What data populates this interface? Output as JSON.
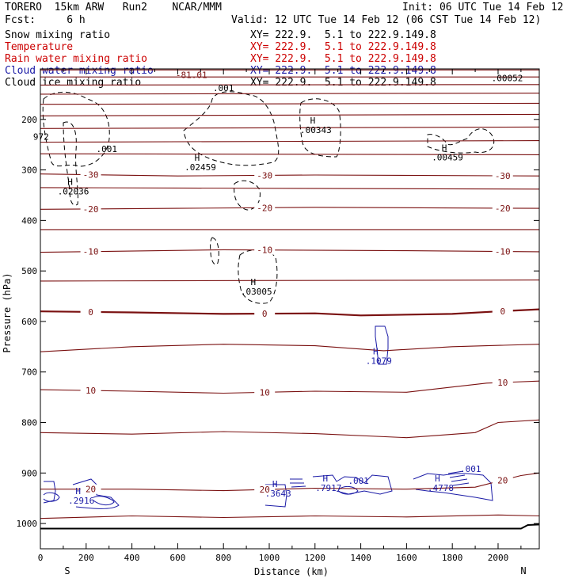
{
  "header": {
    "left_line1": "TORERO  15km ARW   Run2    NCAR/MMM",
    "left_line2": "Fcst:     6 h",
    "init": "Init: 06 UTC Tue 14 Feb 12",
    "valid": "Valid: 12 UTC Tue 14 Feb 12 (06 CST Tue 14 Feb 12)"
  },
  "legend": [
    {
      "name": "Snow mixing ratio",
      "xy": "XY= 222.9.  5.1 to 222.9.149.8",
      "color": "#000000"
    },
    {
      "name": "Temperature",
      "xy": "XY= 222.9.  5.1 to 222.9.149.8",
      "color": "#cc0000"
    },
    {
      "name": "Rain water mixing ratio",
      "xy": "XY= 222.9.  5.1 to 222.9.149.8",
      "color": "#cc0000"
    },
    {
      "name": "Cloud water mixing ratio",
      "xy": "XY= 222.9.  5.1 to 222.9.149.8",
      "color": "#1a1aa6"
    },
    {
      "name": "Cloud ice mixing ratio",
      "xy": "XY= 222.9.  5.1 to 222.9.149.8",
      "color": "#000000"
    }
  ],
  "chart_data": {
    "type": "line",
    "xlabel": "Distance (km)",
    "ylabel": "Pressure (hPa)",
    "xlim": [
      0,
      2180
    ],
    "ylim": [
      1050,
      100
    ],
    "x_ticks": [
      0,
      200,
      400,
      600,
      800,
      1000,
      1200,
      1400,
      1600,
      1800,
      2000
    ],
    "y_ticks": [
      200,
      300,
      400,
      500,
      600,
      700,
      800,
      900,
      1000
    ],
    "x_end_labels": {
      "left": "S",
      "right": "N"
    },
    "colors": {
      "temperature": "#7a1010",
      "cloud_water": "#1a1aa6",
      "snow": "#000000",
      "ground": "#000000"
    },
    "temperature_lines": [
      {
        "label": "",
        "points": [
          [
            0,
            102
          ],
          [
            2180,
            102
          ]
        ]
      },
      {
        "label": "",
        "points": [
          [
            0,
            116
          ],
          [
            2180,
            116
          ]
        ]
      },
      {
        "label": "",
        "points": [
          [
            0,
            132
          ],
          [
            2180,
            131
          ]
        ]
      },
      {
        "label": "",
        "points": [
          [
            0,
            150
          ],
          [
            2180,
            148
          ]
        ]
      },
      {
        "label": "",
        "points": [
          [
            0,
            170
          ],
          [
            2180,
            168
          ]
        ]
      },
      {
        "label": "",
        "points": [
          [
            0,
            193
          ],
          [
            2180,
            190
          ]
        ]
      },
      {
        "label": "",
        "points": [
          [
            0,
            218
          ],
          [
            2180,
            215
          ]
        ]
      },
      {
        "label": "",
        "points": [
          [
            0,
            245
          ],
          [
            2180,
            242
          ]
        ]
      },
      {
        "label": "",
        "points": [
          [
            0,
            268
          ],
          [
            2180,
            270
          ]
        ]
      },
      {
        "label": "-30",
        "points": [
          [
            0,
            308
          ],
          [
            600,
            312
          ],
          [
            1200,
            310
          ],
          [
            2180,
            312
          ]
        ]
      },
      {
        "label": "",
        "points": [
          [
            0,
            335
          ],
          [
            2180,
            338
          ]
        ]
      },
      {
        "label": "-20",
        "points": [
          [
            0,
            378
          ],
          [
            600,
            376
          ],
          [
            1200,
            374
          ],
          [
            2180,
            376
          ]
        ]
      },
      {
        "label": "",
        "points": [
          [
            0,
            418
          ],
          [
            2180,
            418
          ]
        ]
      },
      {
        "label": "-10",
        "points": [
          [
            0,
            463
          ],
          [
            800,
            458
          ],
          [
            1600,
            460
          ],
          [
            2180,
            462
          ]
        ]
      },
      {
        "label": "",
        "points": [
          [
            0,
            520
          ],
          [
            2180,
            518
          ]
        ]
      },
      {
        "label": "0",
        "points": [
          [
            0,
            580
          ],
          [
            400,
            582
          ],
          [
            800,
            585
          ],
          [
            1200,
            584
          ],
          [
            1400,
            588
          ],
          [
            1800,
            585
          ],
          [
            2000,
            580
          ],
          [
            2180,
            576
          ]
        ]
      },
      {
        "label": "",
        "points": [
          [
            0,
            660
          ],
          [
            400,
            650
          ],
          [
            800,
            645
          ],
          [
            1200,
            648
          ],
          [
            1500,
            658
          ],
          [
            1800,
            650
          ],
          [
            2180,
            645
          ]
        ]
      },
      {
        "label": "10",
        "points": [
          [
            0,
            735
          ],
          [
            400,
            738
          ],
          [
            800,
            742
          ],
          [
            1200,
            738
          ],
          [
            1600,
            740
          ],
          [
            1950,
            722
          ],
          [
            2180,
            718
          ]
        ]
      },
      {
        "label": "",
        "points": [
          [
            0,
            820
          ],
          [
            400,
            823
          ],
          [
            800,
            818
          ],
          [
            1200,
            822
          ],
          [
            1600,
            830
          ],
          [
            1900,
            820
          ],
          [
            2000,
            800
          ],
          [
            2180,
            795
          ]
        ]
      },
      {
        "label": "20",
        "points": [
          [
            0,
            932
          ],
          [
            400,
            932
          ],
          [
            800,
            935
          ],
          [
            1200,
            930
          ],
          [
            1600,
            932
          ],
          [
            1900,
            928
          ],
          [
            2100,
            905
          ],
          [
            2180,
            900
          ]
        ]
      },
      {
        "label": "",
        "points": [
          [
            0,
            990
          ],
          [
            400,
            985
          ],
          [
            800,
            988
          ],
          [
            1200,
            985
          ],
          [
            1600,
            987
          ],
          [
            2000,
            983
          ],
          [
            2180,
            985
          ]
        ]
      }
    ],
    "ground": [
      [
        0,
        1010
      ],
      [
        2100,
        1010
      ],
      [
        2130,
        1003
      ],
      [
        2180,
        1002
      ]
    ],
    "maxima": [
      {
        "x": 130,
        "p": 330,
        "label": ".02036",
        "color": "#000000"
      },
      {
        "x": 685,
        "p": 282,
        "label": ".02459",
        "color": "#000000"
      },
      {
        "x": 1190,
        "p": 208,
        "label": ".00343",
        "color": "#000000"
      },
      {
        "x": 1765,
        "p": 262,
        "label": ".00459",
        "color": "#000000"
      },
      {
        "x": 930,
        "p": 528,
        "label": ".03005",
        "color": "#000000"
      },
      {
        "x": 1465,
        "p": 665,
        "label": ".1079",
        "color": "#1a1aa6"
      },
      {
        "x": 165,
        "p": 942,
        "label": ".2916",
        "color": "#1a1aa6"
      },
      {
        "x": 1025,
        "p": 928,
        "label": ".3643",
        "color": "#1a1aa6"
      },
      {
        "x": 1245,
        "p": 917,
        "label": ".7917",
        "color": "#1a1aa6"
      },
      {
        "x": 1735,
        "p": 917,
        "label": ".4778",
        "color": "#1a1aa6"
      }
    ],
    "contour_labels": [
      {
        "x": 800,
        "p": 138,
        "text": ".001",
        "color": "#000000"
      },
      {
        "x": 290,
        "p": 258,
        "text": ".001",
        "color": "#000000"
      },
      {
        "x": 1390,
        "p": 915,
        "text": ".001",
        "color": "#1a1aa6"
      },
      {
        "x": 1880,
        "p": 892,
        "text": ".001",
        "color": "#1a1aa6"
      },
      {
        "x": 2040,
        "p": 118,
        "text": ".00052",
        "color": "#000000"
      },
      {
        "x": 660,
        "p": 112,
        "text": "-81.01",
        "color": "#7a1010"
      },
      {
        "x": 3,
        "p": 234,
        "text": "972",
        "color": "#000000"
      }
    ]
  }
}
